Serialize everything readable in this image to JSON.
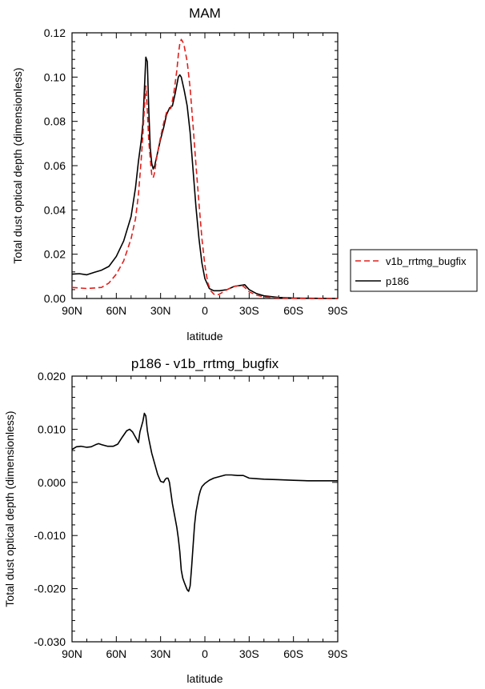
{
  "chart_data": [
    {
      "type": "line",
      "title": "MAM",
      "xlabel": "latitude",
      "ylabel": "Total dust optical depth (dimensionless)",
      "xlim": [
        90,
        -90
      ],
      "ylim": [
        0.0,
        0.12
      ],
      "x_ticks": [
        90,
        60,
        30,
        0,
        -30,
        -60,
        -90
      ],
      "x_tick_labels": [
        "90N",
        "60N",
        "30N",
        "0",
        "30S",
        "60S",
        "90S"
      ],
      "y_ticks": [
        0.0,
        0.02,
        0.04,
        0.06,
        0.08,
        0.1,
        0.12
      ],
      "y_tick_labels": [
        "0.00",
        "0.02",
        "0.04",
        "0.06",
        "0.08",
        "0.10",
        "0.12"
      ],
      "legend_position": "right",
      "series": [
        {
          "name": "v1b_rrtmg_bugfix",
          "color": "#e0201c",
          "dash": "dashed",
          "x": [
            90,
            80,
            70,
            65,
            60,
            55,
            50,
            47,
            45,
            43,
            42,
            41,
            40,
            39,
            38,
            37,
            36,
            35,
            34,
            33,
            32,
            30,
            28,
            26,
            25,
            23,
            21,
            19,
            18,
            17,
            16,
            15,
            14,
            12,
            10,
            8,
            6,
            4,
            2,
            0,
            -2,
            -4,
            -6,
            -8,
            -10,
            -15,
            -20,
            -25,
            -27,
            -30,
            -35,
            -40,
            -50,
            -60,
            -70,
            -90
          ],
          "values": [
            0.005,
            0.0045,
            0.005,
            0.007,
            0.011,
            0.017,
            0.027,
            0.036,
            0.047,
            0.064,
            0.074,
            0.086,
            0.096,
            0.085,
            0.071,
            0.063,
            0.056,
            0.0545,
            0.057,
            0.062,
            0.066,
            0.073,
            0.079,
            0.084,
            0.085,
            0.086,
            0.093,
            0.103,
            0.11,
            0.115,
            0.117,
            0.116,
            0.114,
            0.107,
            0.095,
            0.078,
            0.06,
            0.043,
            0.027,
            0.015,
            0.007,
            0.0035,
            0.002,
            0.0015,
            0.002,
            0.004,
            0.0055,
            0.006,
            0.005,
            0.003,
            0.0015,
            0.0007,
            0.0003,
            0.0001,
            0.0,
            0.0
          ]
        },
        {
          "name": "p186",
          "color": "#000000",
          "dash": "solid",
          "x": [
            90,
            85,
            80,
            75,
            70,
            65,
            60,
            55,
            50,
            47,
            45,
            43,
            42,
            41,
            40,
            39,
            38,
            37,
            36,
            35,
            34,
            32,
            30,
            28,
            26,
            24,
            22,
            20,
            18,
            17,
            16,
            15,
            14,
            12,
            10,
            8,
            6,
            4,
            2,
            0,
            -3,
            -6,
            -10,
            -15,
            -20,
            -25,
            -27,
            -30,
            -35,
            -40,
            -50,
            -60,
            -70,
            -90
          ],
          "values": [
            0.011,
            0.0112,
            0.0107,
            0.0118,
            0.0128,
            0.0145,
            0.019,
            0.026,
            0.037,
            0.05,
            0.062,
            0.072,
            0.079,
            0.094,
            0.109,
            0.107,
            0.085,
            0.068,
            0.061,
            0.0585,
            0.06,
            0.066,
            0.072,
            0.077,
            0.083,
            0.086,
            0.087,
            0.093,
            0.1,
            0.101,
            0.1,
            0.097,
            0.094,
            0.087,
            0.075,
            0.058,
            0.041,
            0.027,
            0.016,
            0.009,
            0.0045,
            0.0035,
            0.0035,
            0.004,
            0.0055,
            0.006,
            0.0062,
            0.004,
            0.0022,
            0.0012,
            0.0005,
            0.0002,
            0.0001,
            0.0
          ]
        }
      ]
    },
    {
      "type": "line",
      "title": "p186 - v1b_rrtmg_bugfix",
      "xlabel": "latitude",
      "ylabel": "Total dust optical depth (dimensionless)",
      "xlim": [
        90,
        -90
      ],
      "ylim": [
        -0.03,
        0.02
      ],
      "x_ticks": [
        90,
        60,
        30,
        0,
        -30,
        -60,
        -90
      ],
      "x_tick_labels": [
        "90N",
        "60N",
        "30N",
        "0",
        "30S",
        "60S",
        "90S"
      ],
      "y_ticks": [
        -0.03,
        -0.02,
        -0.01,
        0.0,
        0.01,
        0.02
      ],
      "y_tick_labels": [
        "-0.030",
        "-0.020",
        "-0.010",
        "0.000",
        "0.010",
        "0.020"
      ],
      "series": [
        {
          "name": "p186 - v1b_rrtmg_bugfix",
          "color": "#000000",
          "dash": "solid",
          "x": [
            90,
            87,
            84,
            80,
            77,
            74,
            72,
            70,
            66,
            62,
            59,
            56,
            53,
            51,
            49,
            47,
            45,
            44,
            42,
            41,
            40,
            39,
            38,
            36,
            34,
            32,
            30,
            28,
            27,
            26,
            25,
            24,
            23,
            22,
            21,
            20,
            19,
            18,
            17,
            16,
            15,
            14,
            13,
            12,
            11,
            10,
            9,
            8,
            7,
            6,
            5,
            4,
            3,
            2,
            0,
            -3,
            -6,
            -10,
            -14,
            -18,
            -22,
            -26,
            -30,
            -35,
            -40,
            -50,
            -60,
            -70,
            -80,
            -90
          ],
          "values": [
            0.0062,
            0.0067,
            0.0068,
            0.0066,
            0.0067,
            0.0071,
            0.0073,
            0.0071,
            0.0068,
            0.0068,
            0.0072,
            0.0085,
            0.0097,
            0.01,
            0.0095,
            0.0085,
            0.0075,
            0.0095,
            0.0115,
            0.013,
            0.0125,
            0.0098,
            0.0082,
            0.0055,
            0.0035,
            0.0015,
            0.0002,
            0.0,
            0.0005,
            0.0008,
            0.0008,
            0.0,
            -0.002,
            -0.004,
            -0.0055,
            -0.007,
            -0.0085,
            -0.0105,
            -0.013,
            -0.0165,
            -0.018,
            -0.0188,
            -0.0195,
            -0.0202,
            -0.0205,
            -0.0195,
            -0.016,
            -0.012,
            -0.008,
            -0.0055,
            -0.004,
            -0.0025,
            -0.0015,
            -0.0008,
            -0.0002,
            0.0004,
            0.0008,
            0.0011,
            0.0014,
            0.0014,
            0.0013,
            0.0013,
            0.0008,
            0.0007,
            0.0006,
            0.0005,
            0.0004,
            0.0003,
            0.0003,
            0.0003
          ]
        }
      ]
    }
  ]
}
